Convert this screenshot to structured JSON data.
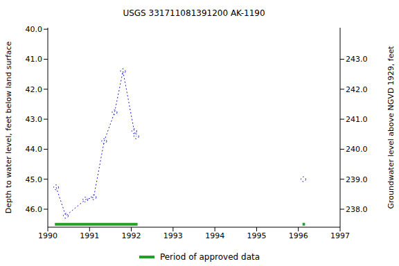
{
  "chart_data": {
    "type": "line",
    "title": "USGS 331711081391200 AK-1190",
    "y_label": "Depth to water level, feet below land surface",
    "y2_label": "Groundwater level above NGVD 1929, feet",
    "x": [
      1990.2,
      1990.43,
      1990.9,
      1991.1,
      1991.35,
      1991.6,
      1991.8,
      1992.07,
      1992.12,
      1996.12
    ],
    "values": [
      45.27,
      46.22,
      45.68,
      45.6,
      43.73,
      42.77,
      41.4,
      43.4,
      43.57,
      45.0
    ],
    "color": "#1c1cc8",
    "marker": "circle",
    "line_style": "dotted",
    "approved_periods": {
      "name": "Period of approved data",
      "color": "#22a022",
      "ranges": [
        [
          1990.17,
          1992.15
        ],
        [
          1996.1,
          1996.16
        ]
      ]
    },
    "legend": "bottom",
    "xlim": [
      1990,
      1997
    ],
    "xticks": [
      1990,
      1991,
      1992,
      1993,
      1994,
      1995,
      1996,
      1997
    ],
    "ylim": [
      46.6,
      39.95
    ],
    "yticks": [
      {
        "value": 40,
        "label": "40.0"
      },
      {
        "value": 41,
        "label": "41.0"
      },
      {
        "value": 42,
        "label": "42.0"
      },
      {
        "value": 43,
        "label": "43.0"
      },
      {
        "value": 44,
        "label": "44.0"
      },
      {
        "value": 45,
        "label": "45.0"
      },
      {
        "value": 46,
        "label": "46.0"
      }
    ],
    "y2lim": [
      237.4,
      244.05
    ],
    "y2ticks": [
      {
        "value": 238,
        "label": "238.0"
      },
      {
        "value": 239,
        "label": "239.0"
      },
      {
        "value": 240,
        "label": "240.0"
      },
      {
        "value": 241,
        "label": "241.0"
      },
      {
        "value": 242,
        "label": "242.0"
      },
      {
        "value": 243,
        "label": "243.0"
      }
    ]
  }
}
